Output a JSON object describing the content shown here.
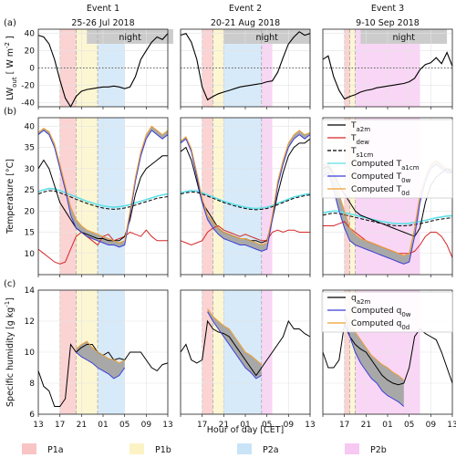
{
  "figure": {
    "panel_letters": [
      "(a)",
      "(b)",
      "(c)"
    ],
    "xlabel": "Hour of day [CET]",
    "shading_labels": {
      "night": "night"
    },
    "phase_legend": [
      {
        "label": "P1a",
        "color": "#f9c4c4"
      },
      {
        "label": "P1b",
        "color": "#fcf3c4"
      },
      {
        "label": "P2a",
        "color": "#c9e3f7"
      },
      {
        "label": "P2b",
        "color": "#f7c8f2"
      }
    ],
    "events": [
      {
        "title": "Event 1",
        "date": "25-26 Jul 2018"
      },
      {
        "title": "Event 2",
        "date": "20-21 Aug 2018"
      },
      {
        "title": "Event 3",
        "date": "9-10 Sep 2018"
      }
    ]
  },
  "chart_data": [
    {
      "type": "line",
      "panel": "(a)",
      "ylabel": "LW_out [ W m^-2 ]",
      "ylim": [
        -45,
        45
      ],
      "yticks": [
        -40,
        -20,
        0,
        20,
        40
      ],
      "xticks": [
        "13",
        "17",
        "21",
        "01",
        "05",
        "09",
        "13"
      ],
      "x_unit": "hours since 13:00 CET",
      "zero_line": "dotted",
      "events": [
        {
          "night": [
            22,
            38
          ],
          "phases": {
            "P1a": [
              4,
              7
            ],
            "P1b": [
              7,
              11
            ],
            "P2a": [
              11,
              16
            ]
          },
          "series": [
            {
              "color": "#000000",
              "x": [
                0,
                1,
                2,
                3,
                4,
                5,
                6,
                7,
                8,
                9,
                10,
                11,
                12,
                13,
                14,
                15,
                16,
                17,
                18,
                19,
                20,
                21,
                22,
                23,
                24
              ],
              "y": [
                38,
                36,
                28,
                10,
                -14,
                -35,
                -45,
                -33,
                -27,
                -25,
                -24,
                -23,
                -22,
                -22,
                -21,
                -22,
                -24,
                -22,
                -10,
                10,
                20,
                30,
                36,
                33,
                40
              ]
            }
          ]
        },
        {
          "night": [
            21,
            37
          ],
          "phases": {
            "P1a": [
              4,
              6
            ],
            "P1b": [
              6,
              8
            ],
            "P2a": [
              8,
              15
            ],
            "P2b": [
              15,
              17
            ]
          },
          "series": [
            {
              "color": "#000000",
              "x": [
                0,
                1,
                2,
                3,
                4,
                5,
                6,
                7,
                8,
                9,
                10,
                11,
                12,
                13,
                14,
                15,
                16,
                17,
                18,
                19,
                20,
                21,
                22,
                23,
                24
              ],
              "y": [
                38,
                40,
                30,
                10,
                -22,
                -37,
                -33,
                -30,
                -28,
                -26,
                -24,
                -22,
                -21,
                -20,
                -19,
                -18,
                -16,
                -15,
                -5,
                12,
                28,
                36,
                42,
                38,
                40
              ]
            }
          ]
        },
        {
          "night": [
            20,
            36
          ],
          "phases": {
            "P1a": [
              4,
              5
            ],
            "P1b": [
              5,
              6
            ],
            "P2b": [
              6,
              18
            ]
          },
          "series": [
            {
              "color": "#000000",
              "x": [
                0,
                1,
                2,
                3,
                4,
                5,
                6,
                7,
                8,
                9,
                10,
                11,
                12,
                13,
                14,
                15,
                16,
                17,
                18,
                19,
                20,
                21,
                22,
                23,
                24
              ],
              "y": [
                10,
                14,
                -10,
                -26,
                -36,
                -33,
                -31,
                -28,
                -26,
                -25,
                -23,
                -22,
                -21,
                -20,
                -19,
                -18,
                -16,
                -12,
                -2,
                4,
                6,
                12,
                5,
                18,
                2
              ]
            }
          ]
        }
      ]
    },
    {
      "type": "line",
      "panel": "(b)",
      "ylabel": "Temperature [°C]",
      "ylim": [
        5,
        42
      ],
      "yticks": [
        10,
        15,
        20,
        25,
        30,
        35,
        40
      ],
      "legend": [
        {
          "label": "T_a2m",
          "color": "#000000",
          "dash": "solid"
        },
        {
          "label": "T_dew",
          "color": "#d62728",
          "dash": "solid"
        },
        {
          "label": "T_s1cm",
          "color": "#000000",
          "dash": "dashed"
        },
        {
          "label": "Computed T_a1cm",
          "color": "#5fe0e8",
          "dash": "solid"
        },
        {
          "label": "Computed T_0w",
          "color": "#3a3fd9",
          "dash": "solid"
        },
        {
          "label": "Computed T_0d",
          "color": "#f0a030",
          "dash": "solid"
        }
      ],
      "events": [
        {
          "T_a2m": [
            30,
            32,
            30,
            26,
            22,
            20,
            18,
            16,
            15,
            14.5,
            14,
            13.5,
            13.5,
            13,
            13,
            13,
            14,
            18,
            24,
            28,
            30,
            31,
            32,
            33,
            33
          ],
          "T_dew": [
            11,
            10,
            9,
            8,
            7.5,
            8,
            11,
            14,
            15,
            14,
            13,
            12,
            14,
            14.5,
            13,
            13.5,
            14,
            15,
            14.5,
            14,
            15.5,
            14,
            13,
            13,
            13
          ],
          "T_s1cm": [
            24,
            24.5,
            24.8,
            24.7,
            24.3,
            23.8,
            23.3,
            22.8,
            22.3,
            21.8,
            21.4,
            21,
            20.7,
            20.5,
            20.4,
            20.5,
            20.7,
            21,
            21.4,
            21.8,
            22.2,
            22.6,
            23,
            23.2,
            23.4
          ],
          "T_a1cm": [
            24.5,
            25,
            25.3,
            25.2,
            24.8,
            24.3,
            23.8,
            23.3,
            22.8,
            22.3,
            21.9,
            21.5,
            21.2,
            21,
            20.9,
            21,
            21.2,
            21.5,
            21.9,
            22.3,
            22.7,
            23.1,
            23.5,
            23.8,
            24
          ],
          "T_0w": [
            38,
            39,
            38,
            35,
            30,
            25,
            19,
            16,
            15,
            14,
            13.5,
            13,
            12.5,
            12,
            12,
            11.5,
            12,
            19,
            27,
            33,
            37,
            39,
            38,
            37,
            38
          ],
          "T_0d": [
            38.5,
            39.5,
            38.7,
            35.8,
            31,
            26,
            21,
            18,
            16.5,
            15.5,
            15,
            14.5,
            14,
            13.5,
            13,
            12.5,
            13,
            20,
            28,
            34,
            38,
            40,
            39,
            38,
            39
          ]
        },
        {
          "T_a2m": [
            34,
            35,
            32,
            27,
            22,
            20,
            18,
            16,
            15,
            14.5,
            14,
            13.5,
            13.5,
            13,
            13,
            12.5,
            13,
            18,
            24,
            29,
            33,
            35,
            36,
            36,
            37
          ],
          "T_dew": [
            13,
            12.5,
            12,
            12.5,
            13,
            15,
            16,
            16.5,
            15.5,
            15,
            14.5,
            14,
            14.5,
            14,
            13.5,
            13,
            13,
            15,
            15.5,
            15,
            15.5,
            15.5,
            15,
            15,
            15
          ],
          "T_s1cm": [
            24,
            24.3,
            24.5,
            24.4,
            24,
            23.5,
            23,
            22.5,
            22,
            21.6,
            21.2,
            20.9,
            20.6,
            20.4,
            20.3,
            20.4,
            20.6,
            21,
            21.5,
            22,
            22.5,
            23,
            23.3,
            23.6,
            23.8
          ],
          "T_a1cm": [
            24.3,
            24.6,
            24.8,
            24.7,
            24.3,
            23.8,
            23.3,
            22.8,
            22.3,
            21.9,
            21.5,
            21.2,
            20.9,
            20.7,
            20.6,
            20.7,
            20.9,
            21.3,
            21.8,
            22.3,
            22.8,
            23.3,
            23.6,
            23.9,
            24.1
          ],
          "T_0w": [
            36,
            37,
            34,
            28,
            22,
            18,
            16,
            14.5,
            13.5,
            13,
            12.5,
            12,
            12,
            11.5,
            11,
            10.5,
            11,
            18,
            26,
            31,
            35,
            37,
            38,
            37,
            38
          ],
          "T_0d": [
            36.5,
            37.5,
            34.7,
            29,
            23,
            19,
            17.5,
            16,
            15,
            14.5,
            14,
            13.5,
            13.5,
            13,
            12.5,
            12,
            12.5,
            19,
            27,
            32,
            36,
            38,
            39,
            38,
            38.5
          ]
        },
        {
          "T_a2m": [
            30,
            30.5,
            29,
            26,
            24,
            22,
            20,
            19,
            18.5,
            18,
            17.5,
            17,
            16.5,
            16,
            15.5,
            15,
            14.5,
            14,
            16,
            22,
            26,
            28,
            29,
            30,
            29
          ],
          "T_dew": [
            16.5,
            16.5,
            16.5,
            17,
            17.5,
            16,
            15,
            14,
            13,
            12.5,
            12,
            11.5,
            11,
            10.5,
            10,
            10,
            10,
            10.5,
            12,
            14,
            15,
            15,
            14,
            12,
            9
          ],
          "T_s1cm": [
            19,
            19.3,
            19.5,
            19.4,
            19.1,
            18.8,
            18.5,
            18.2,
            17.9,
            17.6,
            17.3,
            17,
            16.8,
            16.6,
            16.5,
            16.5,
            16.6,
            16.8,
            17,
            17.3,
            17.6,
            17.9,
            18.1,
            18.3,
            18.4
          ],
          "T_a1cm": [
            19.5,
            19.8,
            20,
            19.9,
            19.6,
            19.3,
            19,
            18.7,
            18.4,
            18.1,
            17.8,
            17.5,
            17.3,
            17.1,
            17,
            17,
            17.1,
            17.3,
            17.5,
            17.8,
            18.1,
            18.4,
            18.6,
            18.8,
            18.9
          ],
          "T_0w": [
            28,
            29,
            25,
            20,
            16,
            13,
            12,
            11.5,
            11,
            10.5,
            10,
            9.5,
            9,
            8.5,
            8,
            7.5,
            8,
            14,
            22,
            27,
            30,
            31,
            30,
            29,
            29
          ],
          "T_0d": [
            31,
            31.5,
            29,
            24,
            20,
            16,
            14.5,
            13.5,
            13,
            12.5,
            12,
            11.5,
            11,
            10.5,
            10,
            9.5,
            10,
            16,
            24,
            28,
            31,
            32,
            31,
            30,
            30
          ]
        }
      ]
    },
    {
      "type": "line",
      "panel": "(c)",
      "ylabel": "Specific humidity [g kg^-1]",
      "ylim": [
        6,
        14
      ],
      "yticks": [
        6,
        8,
        10,
        12,
        14
      ],
      "legend": [
        {
          "label": "q_a2m",
          "color": "#000000"
        },
        {
          "label": "Computed q_0w",
          "color": "#3a3fd9"
        },
        {
          "label": "Computed q_0d",
          "color": "#f0a030"
        }
      ],
      "events": [
        {
          "q_a2m": [
            8.8,
            7.8,
            7.5,
            6.5,
            6.5,
            7,
            10.5,
            10,
            10.3,
            10.5,
            10.5,
            10,
            9.8,
            10,
            9.5,
            9.6,
            9.5,
            10,
            10,
            10,
            9.5,
            9,
            8.8,
            9.2,
            9.3
          ],
          "q_0w": [
            null,
            null,
            null,
            null,
            null,
            null,
            null,
            10,
            9.7,
            9.5,
            9.3,
            9,
            8.8,
            8.6,
            8.3,
            8.5,
            9,
            null,
            null,
            null,
            null,
            null,
            null,
            null,
            null
          ],
          "q_0d": [
            null,
            null,
            null,
            null,
            null,
            null,
            null,
            10.2,
            10.5,
            10.7,
            10.3,
            10,
            9.8,
            9.6,
            9.5,
            9.3,
            9.5,
            null,
            null,
            null,
            null,
            null,
            null,
            null,
            null
          ]
        },
        {
          "q_a2m": [
            10,
            10.5,
            9.5,
            9.3,
            9.5,
            12,
            11.5,
            11.3,
            11.2,
            11,
            10.5,
            10,
            9.5,
            9,
            8.5,
            9,
            9.5,
            10,
            10.5,
            11,
            12,
            11.5,
            11.5,
            11.2,
            11
          ],
          "q_0w": [
            null,
            null,
            null,
            null,
            null,
            12.6,
            12,
            11.5,
            11,
            10.5,
            10,
            9.5,
            9,
            8.7,
            8.3,
            8.5,
            null,
            null,
            null,
            null,
            null,
            null,
            null,
            null,
            null
          ],
          "q_0d": [
            null,
            null,
            null,
            null,
            null,
            12.8,
            12.3,
            12,
            11.7,
            11.5,
            11,
            10.5,
            10,
            9.8,
            9.5,
            9.2,
            null,
            null,
            null,
            null,
            null,
            null,
            null,
            null,
            null
          ]
        },
        {
          "q_a2m": [
            10,
            9,
            9,
            9.5,
            11.8,
            11,
            10.5,
            10.2,
            10,
            9.5,
            9,
            8.5,
            8.2,
            8,
            7.9,
            8,
            9,
            11,
            11.5,
            11.2,
            11,
            10.8,
            10,
            9,
            8
          ],
          "q_0w": [
            null,
            null,
            null,
            null,
            12.4,
            11,
            10,
            9.3,
            8.8,
            8.3,
            8,
            7.5,
            7.2,
            7,
            6.8,
            6.5,
            null,
            null,
            null,
            null,
            null,
            null,
            null,
            null,
            null
          ],
          "q_0d": [
            null,
            null,
            null,
            null,
            12.6,
            11.8,
            11.3,
            10.8,
            10.3,
            9.8,
            9.5,
            9.2,
            9,
            8.7,
            8.5,
            8.2,
            null,
            null,
            null,
            null,
            null,
            null,
            null,
            null,
            null
          ]
        }
      ]
    }
  ]
}
